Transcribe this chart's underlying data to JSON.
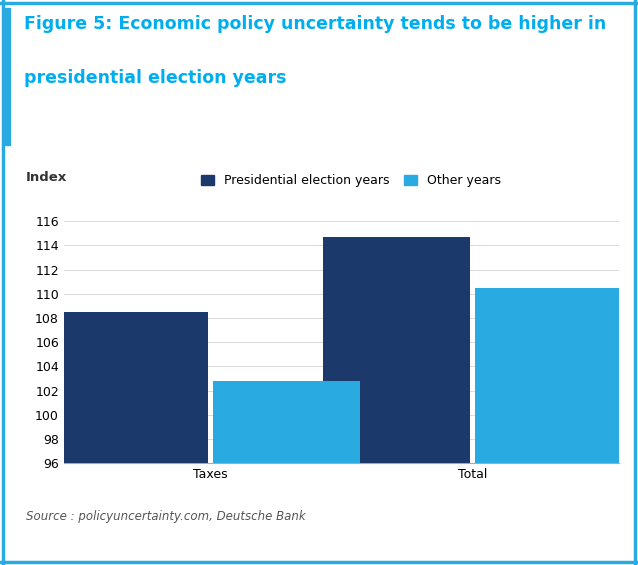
{
  "title_line1": "Figure 5: Economic policy uncertainty tends to be higher in",
  "title_line2": "presidential election years",
  "title_color": "#00AEEF",
  "title_fontsize": 12.5,
  "ylabel": "Index",
  "categories": [
    "Taxes",
    "Total"
  ],
  "series": [
    {
      "label": "Presidential election years",
      "values": [
        108.5,
        114.7
      ],
      "color": "#1B3A6B"
    },
    {
      "label": "Other years",
      "values": [
        102.8,
        110.5
      ],
      "color": "#29ABE2"
    }
  ],
  "ylim": [
    96,
    117
  ],
  "yticks": [
    96,
    98,
    100,
    102,
    104,
    106,
    108,
    110,
    112,
    114,
    116
  ],
  "bar_width": 0.28,
  "source_text": "Source : policyuncertainty.com, Deutsche Bank",
  "background_color": "#FFFFFF",
  "border_color": "#29ABE2",
  "legend_fontsize": 9,
  "axis_fontsize": 9.5,
  "tick_fontsize": 9
}
